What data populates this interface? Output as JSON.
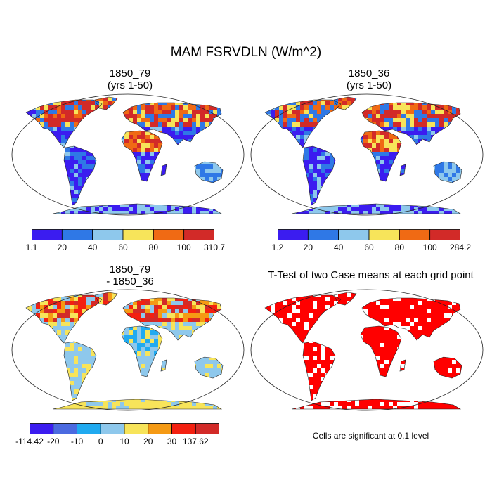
{
  "title": "MAM FSRVDLN (W/m^2)",
  "panels": [
    {
      "id": "case1",
      "title_line1": "1850_79",
      "title_line2": "(yrs 1-50)",
      "colorbar": {
        "colors": [
          "#3b1cf0",
          "#2f78e6",
          "#8ec8ec",
          "#f7e45a",
          "#f06a14",
          "#d22a28"
        ],
        "labels": [
          "1.1",
          "20",
          "40",
          "60",
          "80",
          "100",
          "310.7"
        ]
      }
    },
    {
      "id": "case2",
      "title_line1": "1850_36",
      "title_line2": "(yrs 1-50)",
      "colorbar": {
        "colors": [
          "#3b1cf0",
          "#2f78e6",
          "#8ec8ec",
          "#f7e45a",
          "#f06a14",
          "#d22a28"
        ],
        "labels": [
          "1.2",
          "20",
          "40",
          "60",
          "80",
          "100",
          "284.2"
        ]
      }
    },
    {
      "id": "difference",
      "title_line1": "1850_79",
      "title_line2": "- 1850_36",
      "colorbar": {
        "colors": [
          "#3b1cf0",
          "#4b6ae0",
          "#20aaf0",
          "#8ec8ec",
          "#f7e45a",
          "#f59a14",
          "#f32010",
          "#d22a28"
        ],
        "labels": [
          "-114.42",
          "-20",
          "-10",
          "0",
          "10",
          "20",
          "30",
          "137.62"
        ]
      }
    },
    {
      "id": "ttest",
      "title_line1": "T-Test of two Case means at each grid point",
      "note": "Cells are significant at 0.1 level"
    }
  ]
}
